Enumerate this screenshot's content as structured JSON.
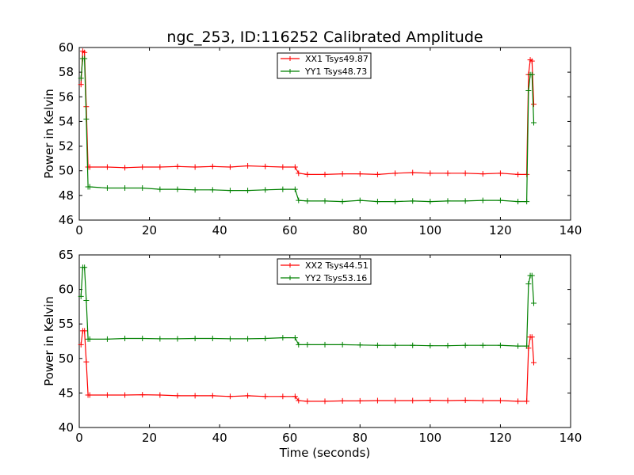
{
  "title": "ngc_253, ID:116252 Calibrated Amplitude",
  "chart_data": [
    {
      "type": "line",
      "title": "ngc_253, ID:116252 Calibrated Amplitude",
      "xlabel": "",
      "ylabel": "Power in Kelvin",
      "xlim": [
        0,
        140
      ],
      "ylim": [
        46,
        60
      ],
      "xticks": [
        0,
        20,
        40,
        60,
        80,
        100,
        120,
        140
      ],
      "yticks": [
        46,
        48,
        50,
        52,
        54,
        56,
        58,
        60
      ],
      "grid": false,
      "legend": "top-center",
      "series": [
        {
          "name": "XX1 Tsys49.87",
          "color": "#ff0000",
          "x": [
            0.5,
            1.0,
            1.5,
            2.0,
            2.5,
            3,
            8,
            13,
            18,
            23,
            28,
            33,
            38,
            43,
            48,
            53,
            58,
            61.5,
            62.5,
            65,
            70,
            75,
            80,
            85,
            90,
            95,
            100,
            105,
            110,
            115,
            120,
            125,
            127.5,
            128,
            128.5,
            129,
            129.5
          ],
          "y": [
            57.0,
            59.7,
            59.6,
            55.2,
            50.3,
            50.3,
            50.3,
            50.25,
            50.3,
            50.3,
            50.35,
            50.3,
            50.35,
            50.3,
            50.4,
            50.35,
            50.3,
            50.3,
            49.8,
            49.7,
            49.7,
            49.75,
            49.75,
            49.7,
            49.8,
            49.85,
            49.8,
            49.8,
            49.8,
            49.75,
            49.8,
            49.7,
            49.7,
            57.8,
            59.0,
            58.9,
            55.4
          ]
        },
        {
          "name": "YY1 Tsys48.73",
          "color": "#008000",
          "x": [
            0.5,
            1.0,
            1.5,
            2.0,
            2.5,
            3,
            8,
            13,
            18,
            23,
            28,
            33,
            38,
            43,
            48,
            53,
            58,
            61.5,
            62.5,
            65,
            70,
            75,
            80,
            85,
            90,
            95,
            100,
            105,
            110,
            115,
            120,
            125,
            127.5,
            128,
            128.5,
            129,
            129.5
          ],
          "y": [
            57.5,
            59.1,
            59.1,
            54.2,
            48.7,
            48.7,
            48.6,
            48.6,
            48.6,
            48.5,
            48.5,
            48.45,
            48.45,
            48.4,
            48.4,
            48.45,
            48.5,
            48.5,
            47.6,
            47.55,
            47.55,
            47.5,
            47.6,
            47.5,
            47.5,
            47.55,
            47.5,
            47.55,
            47.55,
            47.6,
            47.6,
            47.5,
            47.5,
            56.5,
            57.8,
            57.8,
            53.9
          ]
        }
      ]
    },
    {
      "type": "line",
      "title": "",
      "xlabel": "Time (seconds)",
      "ylabel": "Power in Kelvin",
      "xlim": [
        0,
        140
      ],
      "ylim": [
        40,
        65
      ],
      "xticks": [
        0,
        20,
        40,
        60,
        80,
        100,
        120,
        140
      ],
      "yticks": [
        40,
        45,
        50,
        55,
        60,
        65
      ],
      "grid": false,
      "legend": "top-center",
      "series": [
        {
          "name": "XX2 Tsys44.51",
          "color": "#ff0000",
          "x": [
            0.5,
            1.0,
            1.5,
            2.0,
            2.5,
            3,
            8,
            13,
            18,
            23,
            28,
            33,
            38,
            43,
            48,
            53,
            58,
            61.5,
            62.5,
            65,
            70,
            75,
            80,
            85,
            90,
            95,
            100,
            105,
            110,
            115,
            120,
            125,
            127.5,
            128,
            128.5,
            129,
            129.5
          ],
          "y": [
            52.0,
            54.0,
            54.0,
            49.5,
            44.7,
            44.7,
            44.7,
            44.7,
            44.75,
            44.7,
            44.6,
            44.6,
            44.6,
            44.5,
            44.6,
            44.5,
            44.5,
            44.5,
            43.9,
            43.8,
            43.8,
            43.85,
            43.85,
            43.9,
            43.9,
            43.9,
            43.95,
            43.9,
            43.95,
            43.9,
            43.9,
            43.8,
            43.8,
            51.5,
            53.1,
            53.1,
            49.4
          ]
        },
        {
          "name": "YY2 Tsys53.16",
          "color": "#008000",
          "x": [
            0.5,
            1.0,
            1.5,
            2.0,
            2.5,
            3,
            8,
            13,
            18,
            23,
            28,
            33,
            38,
            43,
            48,
            53,
            58,
            61.5,
            62.5,
            65,
            70,
            75,
            80,
            85,
            90,
            95,
            100,
            105,
            110,
            115,
            120,
            125,
            127.5,
            128,
            128.5,
            129,
            129.5
          ],
          "y": [
            59.0,
            63.2,
            63.2,
            58.4,
            52.8,
            52.8,
            52.8,
            52.9,
            52.9,
            52.85,
            52.85,
            52.9,
            52.9,
            52.85,
            52.85,
            52.9,
            53.0,
            53.0,
            52.0,
            52.0,
            52.0,
            52.0,
            51.95,
            51.9,
            51.9,
            51.9,
            51.85,
            51.85,
            51.9,
            51.9,
            51.9,
            51.8,
            51.8,
            60.8,
            62.0,
            62.0,
            58.0
          ]
        }
      ]
    }
  ]
}
